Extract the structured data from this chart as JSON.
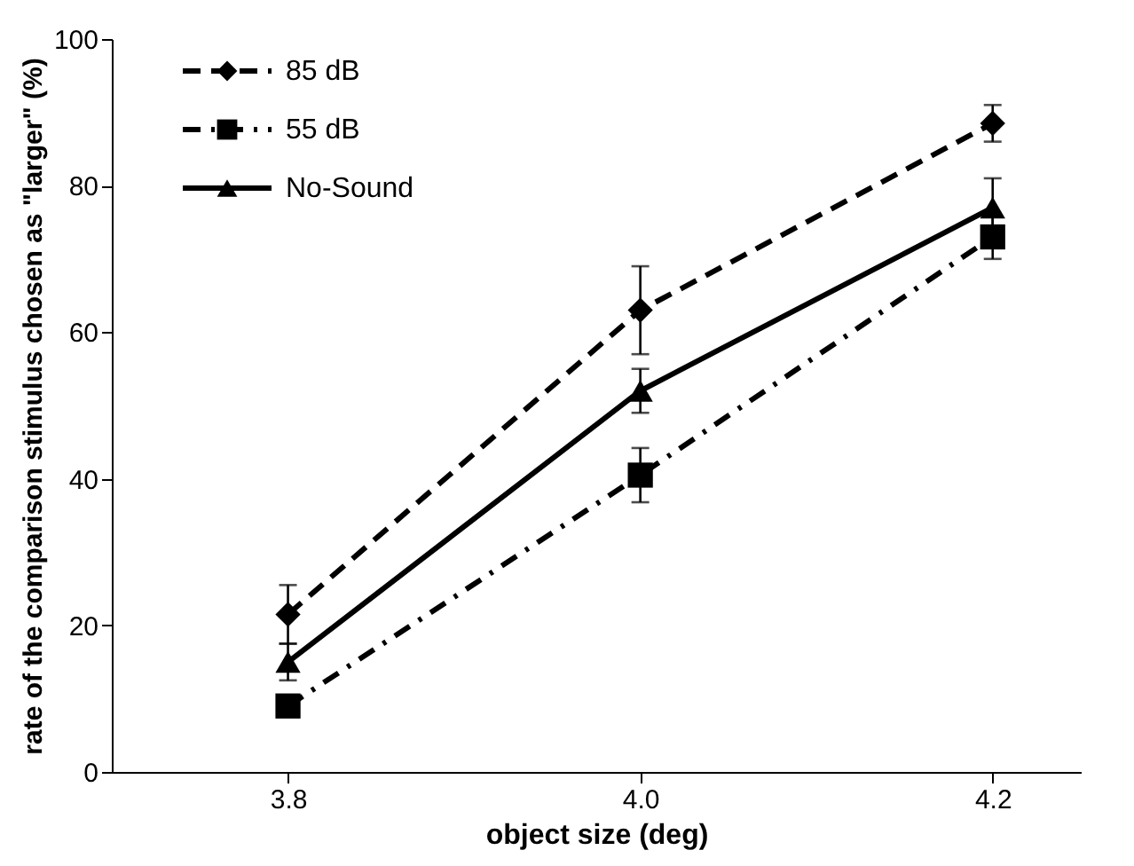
{
  "chart_data": {
    "type": "line",
    "xlabel": "object size (deg)",
    "ylabel": "rate of the comparison stimulus chosen as \"larger\" (%)",
    "x": [
      3.8,
      4.0,
      4.2
    ],
    "xlim": [
      3.7,
      4.25
    ],
    "xticks": [
      {
        "value": 3.8,
        "label": "3.8"
      },
      {
        "value": 4.0,
        "label": "4.0"
      },
      {
        "value": 4.2,
        "label": "4.2"
      }
    ],
    "ylim": [
      0,
      100
    ],
    "yticks": [
      0,
      20,
      40,
      60,
      80,
      100
    ],
    "grid": false,
    "legend": "top left",
    "series": [
      {
        "name": "85 dB",
        "color": "#000000",
        "values": [
          21.5,
          63,
          88.5
        ],
        "errors": [
          4,
          6,
          2.5
        ],
        "marker": "diamond",
        "line_style": "dashed"
      },
      {
        "name": "55 dB",
        "color": "#000000",
        "values": [
          9,
          40.5,
          73
        ],
        "errors": [
          null,
          3.7,
          3
        ],
        "marker": "square",
        "line_style": "dashdot"
      },
      {
        "name": "No-Sound",
        "color": "#000000",
        "values": [
          15,
          52,
          77
        ],
        "errors": [
          2.5,
          3,
          4
        ],
        "marker": "triangle",
        "line_style": "solid"
      }
    ]
  }
}
